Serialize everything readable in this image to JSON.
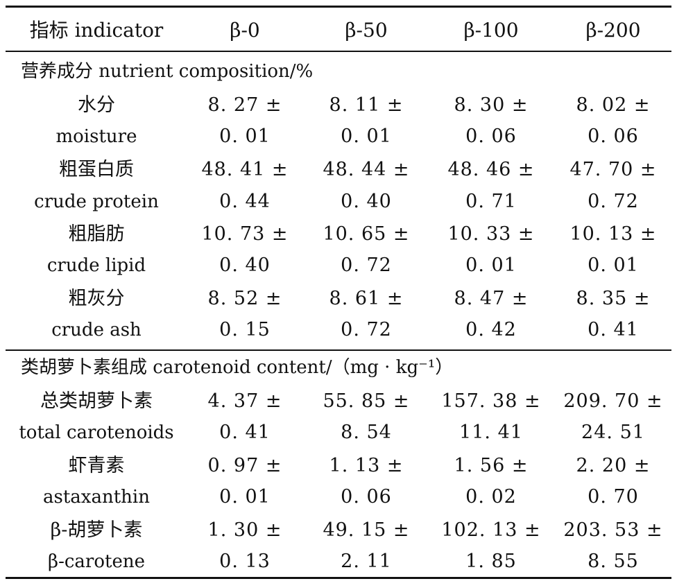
{
  "table": {
    "header": [
      "指标 indicator",
      "β-0",
      "β-50",
      "β-100",
      "β-200"
    ],
    "sections": [
      {
        "title": "营养成分 nutrient composition/%",
        "rows": [
          {
            "name_zh": "水分",
            "name_en": "moisture",
            "values_top": [
              "8. 27 ±",
              "8. 11 ±",
              "8. 30 ±",
              "8. 02 ±"
            ],
            "values_bottom": [
              "0. 01",
              "0. 01",
              "0. 06",
              "0. 06"
            ]
          },
          {
            "name_zh": "粗蛋白质",
            "name_en": "crude protein",
            "values_top": [
              "48. 41 ±",
              "48. 44 ±",
              "48. 46 ±",
              "47. 70 ±"
            ],
            "values_bottom": [
              "0. 44",
              "0. 40",
              "0. 71",
              "0. 72"
            ]
          },
          {
            "name_zh": "粗脂肪",
            "name_en": "crude lipid",
            "values_top": [
              "10. 73 ±",
              "10. 65 ±",
              "10. 33 ±",
              "10. 13 ±"
            ],
            "values_bottom": [
              "0. 40",
              "0. 72",
              "0. 01",
              "0. 01"
            ]
          },
          {
            "name_zh": "粗灰分",
            "name_en": "crude ash",
            "values_top": [
              "8. 52 ±",
              "8. 61 ±",
              "8. 47 ±",
              "8. 35 ±"
            ],
            "values_bottom": [
              "0. 15",
              "0. 72",
              "0. 42",
              "0. 41"
            ]
          }
        ]
      },
      {
        "title": "类胡萝卜素组成 carotenoid content/（mg · kg⁻¹）",
        "rows": [
          {
            "name_zh": "总类胡萝卜素",
            "name_en": "total carotenoids",
            "values_top": [
              "4. 37 ±",
              "55. 85 ±",
              "157. 38 ±",
              "209. 70 ±"
            ],
            "values_bottom": [
              "0. 41",
              "8. 54",
              "11. 41",
              "24. 51"
            ]
          },
          {
            "name_zh": "虾青素",
            "name_en": "astaxanthin",
            "values_top": [
              "0. 97 ±",
              "1. 13 ±",
              "1. 56 ±",
              "2. 20 ±"
            ],
            "values_bottom": [
              "0. 01",
              "0. 06",
              "0. 02",
              "0. 70"
            ]
          },
          {
            "name_zh": "β-胡萝卜素",
            "name_en": "β-carotene",
            "values_top": [
              "1. 30 ±",
              "49. 15 ±",
              "102. 13 ±",
              "203. 53 ±"
            ],
            "values_bottom": [
              "0. 13",
              "2. 11",
              "1. 85",
              "8. 55"
            ]
          }
        ]
      }
    ]
  }
}
